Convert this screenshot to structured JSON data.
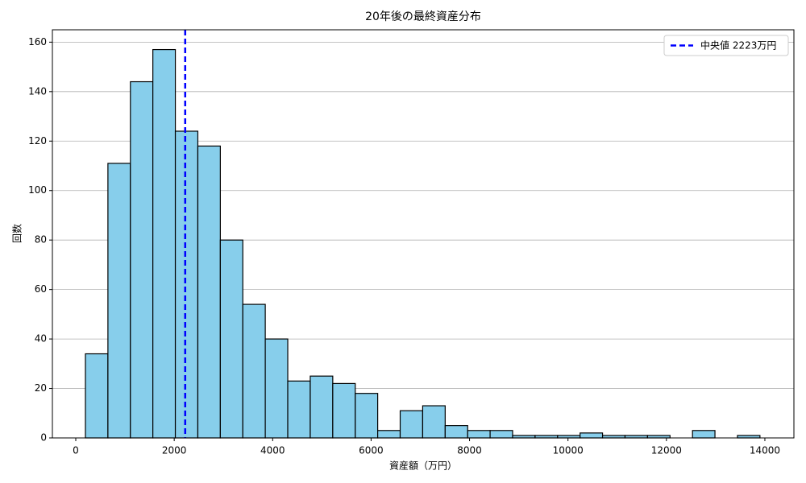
{
  "chart_data": {
    "type": "histogram",
    "title": "20年後の最終資産分布",
    "xlabel": "資産額（万円）",
    "ylabel": "回数",
    "bins": [
      196,
      653,
      1110,
      1566,
      2023,
      2480,
      2937,
      3394,
      3850,
      4307,
      4764,
      5221,
      5678,
      6134,
      6591,
      7048,
      7505,
      7962,
      8418,
      8875,
      9332,
      9789,
      10246,
      10702,
      11159,
      11616,
      12073,
      12530,
      12986,
      13443,
      13900
    ],
    "values": [
      34,
      111,
      144,
      157,
      124,
      118,
      80,
      54,
      40,
      23,
      25,
      22,
      18,
      3,
      11,
      13,
      5,
      3,
      3,
      1,
      1,
      1,
      2,
      1,
      1,
      1,
      0,
      3,
      0,
      1
    ],
    "color": "#87ceeb",
    "edgecolor": "#000000",
    "median": {
      "name": "中央値 2223万円",
      "value": 2223,
      "color": "#0000ff"
    },
    "xlim": [
      -475,
      14590
    ],
    "xticks": [
      0,
      2000,
      4000,
      6000,
      8000,
      10000,
      12000,
      14000
    ],
    "ylim": [
      0,
      165
    ],
    "yticks": [
      0,
      20,
      40,
      60,
      80,
      100,
      120,
      140,
      160
    ],
    "grid": "y",
    "legend": "upper right"
  }
}
